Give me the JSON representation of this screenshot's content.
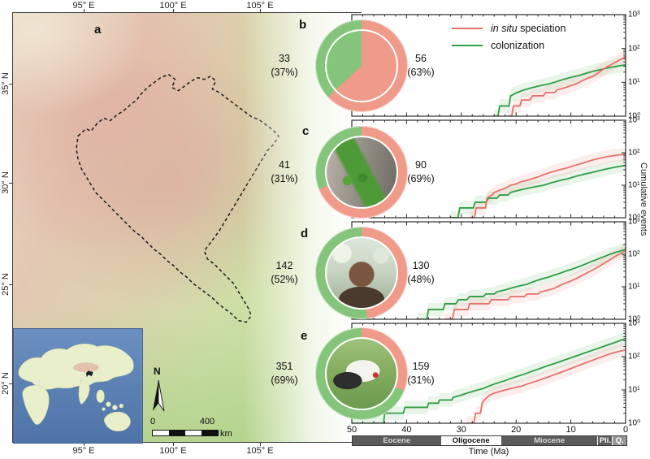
{
  "colors": {
    "speciation_line": "#e4726a",
    "colonization_line": "#2f9e44",
    "speciation_band": "#f0a398",
    "colonization_band": "#8cc98a",
    "donut_speciation": "#f09a8a",
    "donut_colonization": "#85c57b",
    "epoch_dark": "#5b5b5b",
    "epoch_light_text": "#d9d9d9"
  },
  "map": {
    "panel_label": "a",
    "lon_labels": [
      "95° E",
      "100° E",
      "105° E"
    ],
    "lat_labels": [
      "35° N",
      "30° N",
      "25° N",
      "20° N"
    ],
    "north_label": "N",
    "scale_bar": {
      "start": "0",
      "end": "400",
      "unit": "km"
    }
  },
  "legend": {
    "speciation_italic": "in situ",
    "speciation_rest": " speciation",
    "colonization": "colonization"
  },
  "panels": [
    {
      "letter": "b",
      "photo": "frog-photo",
      "colonization_count": "33",
      "colonization_pct": "(37%)",
      "speciation_count": "56",
      "speciation_pct": "(63%)",
      "speciation_share_pct": 63
    },
    {
      "letter": "c",
      "photo": "snake-photo",
      "colonization_count": "41",
      "colonization_pct": "(31%)",
      "speciation_count": "90",
      "speciation_pct": "(69%)",
      "speciation_share_pct": 69
    },
    {
      "letter": "d",
      "photo": "monkey-photo",
      "colonization_count": "142",
      "colonization_pct": "(52%)",
      "speciation_count": "130",
      "speciation_pct": "(48%)",
      "speciation_share_pct": 48
    },
    {
      "letter": "e",
      "photo": "crane-photo",
      "colonization_count": "351",
      "colonization_pct": "(69%)",
      "speciation_count": "159",
      "speciation_pct": "(31%)",
      "speciation_share_pct": 31
    }
  ],
  "y_axis": {
    "label": "Cumulative events",
    "tick_labels": [
      "10³",
      "10²",
      "10¹",
      "10⁰"
    ]
  },
  "time_axis": {
    "label": "Time (Ma)",
    "ticks": [
      "50",
      "40",
      "30",
      "20",
      "10",
      "0"
    ],
    "epochs": [
      {
        "label": "Eocene",
        "from": 50,
        "to": 33.9,
        "bg": "#5b5b5b",
        "fg": "#d9d9d9"
      },
      {
        "label": "Oligocene",
        "from": 33.9,
        "to": 23.0,
        "bg": "#ffffff",
        "fg": "#111111"
      },
      {
        "label": "Miocene",
        "from": 23.0,
        "to": 5.3,
        "bg": "#5b5b5b",
        "fg": "#d9d9d9"
      },
      {
        "label": "Pli.",
        "from": 5.3,
        "to": 2.6,
        "bg": "#5b5b5b",
        "fg": "#ffffff"
      },
      {
        "label": "Q.",
        "from": 2.6,
        "to": 0,
        "bg": "#969696",
        "fg": "#ffffff"
      }
    ]
  },
  "chart_data": [
    {
      "type": "line",
      "panel": "b",
      "x_range": [
        50,
        0
      ],
      "y_log_range": [
        1,
        1000
      ],
      "xlabel": "Time (Ma)",
      "ylabel": "Cumulative events",
      "series": [
        {
          "name": "in situ speciation",
          "color": "#e4726a",
          "points": [
            [
              21.5,
              1
            ],
            [
              20.8,
              1
            ],
            [
              20.5,
              2
            ],
            [
              19.3,
              2
            ],
            [
              19,
              3
            ],
            [
              17.5,
              3
            ],
            [
              17,
              4
            ],
            [
              15,
              4
            ],
            [
              14.6,
              5
            ],
            [
              13,
              5
            ],
            [
              12.5,
              6
            ],
            [
              11,
              7
            ],
            [
              10,
              8
            ],
            [
              9,
              9
            ],
            [
              8,
              11
            ],
            [
              7,
              13
            ],
            [
              6,
              15
            ],
            [
              5,
              19
            ],
            [
              4,
              25
            ],
            [
              3,
              31
            ],
            [
              2,
              38
            ],
            [
              1,
              47
            ],
            [
              0,
              56
            ]
          ]
        },
        {
          "name": "colonization",
          "color": "#2f9e44",
          "points": [
            [
              24,
              1
            ],
            [
              23.3,
              1
            ],
            [
              23,
              2
            ],
            [
              21.3,
              2
            ],
            [
              21,
              4
            ],
            [
              19.8,
              5
            ],
            [
              18.5,
              6
            ],
            [
              17,
              7
            ],
            [
              15.5,
              8
            ],
            [
              14,
              9
            ],
            [
              13,
              10
            ],
            [
              11.5,
              12
            ],
            [
              10,
              14
            ],
            [
              8.5,
              16
            ],
            [
              7,
              19
            ],
            [
              5.5,
              22
            ],
            [
              4,
              25
            ],
            [
              3,
              27
            ],
            [
              2,
              29
            ],
            [
              1,
              31
            ],
            [
              0,
              33
            ]
          ]
        }
      ]
    },
    {
      "type": "line",
      "panel": "c",
      "x_range": [
        50,
        0
      ],
      "y_log_range": [
        1,
        1000
      ],
      "series": [
        {
          "name": "in situ speciation",
          "color": "#e4726a",
          "points": [
            [
              28.5,
              1
            ],
            [
              27.6,
              1
            ],
            [
              27.3,
              2
            ],
            [
              25.6,
              2
            ],
            [
              25.3,
              4
            ],
            [
              24.4,
              5
            ],
            [
              24,
              6
            ],
            [
              23,
              7
            ],
            [
              22,
              8
            ],
            [
              21,
              10
            ],
            [
              20,
              11
            ],
            [
              19,
              13
            ],
            [
              18,
              14
            ],
            [
              17,
              16
            ],
            [
              16,
              18
            ],
            [
              15,
              21
            ],
            [
              14,
              24
            ],
            [
              13,
              27
            ],
            [
              12,
              30
            ],
            [
              11,
              33
            ],
            [
              10,
              37
            ],
            [
              9,
              42
            ],
            [
              8,
              47
            ],
            [
              7,
              53
            ],
            [
              6,
              60
            ],
            [
              5,
              66
            ],
            [
              4,
              72
            ],
            [
              3,
              77
            ],
            [
              2,
              82
            ],
            [
              1,
              86
            ],
            [
              0,
              90
            ]
          ]
        },
        {
          "name": "colonization",
          "color": "#2f9e44",
          "points": [
            [
              32,
              1
            ],
            [
              30.6,
              1
            ],
            [
              30.3,
              2
            ],
            [
              27.8,
              2
            ],
            [
              27.5,
              3
            ],
            [
              25.5,
              3
            ],
            [
              25,
              4
            ],
            [
              23.5,
              4
            ],
            [
              23,
              5
            ],
            [
              21.5,
              5
            ],
            [
              21,
              6
            ],
            [
              19.5,
              7
            ],
            [
              18,
              8
            ],
            [
              16.5,
              9
            ],
            [
              15,
              10
            ],
            [
              13.5,
              12
            ],
            [
              12,
              14
            ],
            [
              10.5,
              16
            ],
            [
              9,
              19
            ],
            [
              7.5,
              22
            ],
            [
              6,
              25
            ],
            [
              4.5,
              29
            ],
            [
              3,
              33
            ],
            [
              1.5,
              37
            ],
            [
              0,
              41
            ]
          ]
        }
      ]
    },
    {
      "type": "line",
      "panel": "d",
      "x_range": [
        50,
        0
      ],
      "y_log_range": [
        1,
        1000
      ],
      "series": [
        {
          "name": "in situ speciation",
          "color": "#e4726a",
          "points": [
            [
              33,
              1
            ],
            [
              31.6,
              1
            ],
            [
              31.3,
              2
            ],
            [
              28.8,
              2
            ],
            [
              28.5,
              3
            ],
            [
              25,
              3
            ],
            [
              24.5,
              4
            ],
            [
              21.5,
              4
            ],
            [
              21,
              5
            ],
            [
              18.5,
              5
            ],
            [
              18,
              6
            ],
            [
              16,
              6
            ],
            [
              15.5,
              7
            ],
            [
              14,
              8
            ],
            [
              13,
              9
            ],
            [
              12,
              11
            ],
            [
              11,
              13
            ],
            [
              10,
              15
            ],
            [
              9,
              18
            ],
            [
              8,
              22
            ],
            [
              7,
              27
            ],
            [
              6,
              33
            ],
            [
              5,
              41
            ],
            [
              4,
              52
            ],
            [
              3,
              66
            ],
            [
              2,
              84
            ],
            [
              1,
              105
            ],
            [
              0,
              130
            ]
          ]
        },
        {
          "name": "colonization",
          "color": "#2f9e44",
          "points": [
            [
              38,
              1
            ],
            [
              36.3,
              1
            ],
            [
              36,
              2
            ],
            [
              33.3,
              2
            ],
            [
              33,
              3
            ],
            [
              31,
              3
            ],
            [
              30.5,
              4
            ],
            [
              29,
              4
            ],
            [
              28.5,
              5
            ],
            [
              26,
              5
            ],
            [
              25.5,
              6
            ],
            [
              24,
              6
            ],
            [
              23.5,
              7
            ],
            [
              22,
              8
            ],
            [
              21,
              9
            ],
            [
              20,
              10
            ],
            [
              19,
              11
            ],
            [
              18,
              12
            ],
            [
              17,
              14
            ],
            [
              16,
              16
            ],
            [
              15,
              18
            ],
            [
              14,
              20
            ],
            [
              13,
              23
            ],
            [
              12,
              26
            ],
            [
              11,
              30
            ],
            [
              10,
              34
            ],
            [
              9,
              39
            ],
            [
              8,
              45
            ],
            [
              7,
              53
            ],
            [
              6,
              62
            ],
            [
              5,
              72
            ],
            [
              4,
              84
            ],
            [
              3,
              98
            ],
            [
              2,
              112
            ],
            [
              1,
              126
            ],
            [
              0,
              142
            ]
          ]
        }
      ]
    },
    {
      "type": "line",
      "panel": "e",
      "x_range": [
        50,
        0
      ],
      "y_log_range": [
        1,
        1000
      ],
      "series": [
        {
          "name": "in situ speciation",
          "color": "#e4726a",
          "points": [
            [
              29,
              1
            ],
            [
              27.7,
              1
            ],
            [
              27.4,
              2
            ],
            [
              26.5,
              2
            ],
            [
              26.2,
              4
            ],
            [
              25.8,
              5
            ],
            [
              25.3,
              6
            ],
            [
              24.8,
              7
            ],
            [
              24,
              8
            ],
            [
              23,
              9
            ],
            [
              22,
              10
            ],
            [
              21,
              11
            ],
            [
              20,
              12
            ],
            [
              19,
              13
            ],
            [
              18,
              15
            ],
            [
              17,
              17
            ],
            [
              16,
              19
            ],
            [
              15,
              22
            ],
            [
              14,
              25
            ],
            [
              13,
              29
            ],
            [
              12,
              33
            ],
            [
              11,
              38
            ],
            [
              10,
              44
            ],
            [
              9,
              51
            ],
            [
              8,
              59
            ],
            [
              7,
              68
            ],
            [
              6,
              78
            ],
            [
              5,
              90
            ],
            [
              4,
              104
            ],
            [
              3,
              119
            ],
            [
              2,
              133
            ],
            [
              1,
              146
            ],
            [
              0,
              159
            ]
          ]
        },
        {
          "name": "colonization",
          "color": "#2f9e44",
          "points": [
            [
              50,
              1
            ],
            [
              44.2,
              1
            ],
            [
              44,
              2
            ],
            [
              40.6,
              2
            ],
            [
              40.3,
              3
            ],
            [
              36.2,
              3
            ],
            [
              36,
              4
            ],
            [
              34.2,
              4
            ],
            [
              34,
              5
            ],
            [
              31.7,
              5
            ],
            [
              31.5,
              6
            ],
            [
              30,
              7
            ],
            [
              29,
              8
            ],
            [
              28,
              9
            ],
            [
              27,
              10
            ],
            [
              26,
              11
            ],
            [
              25,
              13
            ],
            [
              24,
              15
            ],
            [
              23,
              17
            ],
            [
              22,
              19
            ],
            [
              21,
              22
            ],
            [
              20,
              25
            ],
            [
              19,
              28
            ],
            [
              18,
              32
            ],
            [
              17,
              37
            ],
            [
              16,
              42
            ],
            [
              15,
              48
            ],
            [
              14,
              55
            ],
            [
              13,
              62
            ],
            [
              12,
              71
            ],
            [
              11,
              81
            ],
            [
              10,
              92
            ],
            [
              9,
              105
            ],
            [
              8,
              120
            ],
            [
              7,
              137
            ],
            [
              6,
              156
            ],
            [
              5,
              178
            ],
            [
              4,
              203
            ],
            [
              3,
              232
            ],
            [
              2,
              264
            ],
            [
              1,
              305
            ],
            [
              0,
              351
            ]
          ]
        }
      ]
    }
  ]
}
